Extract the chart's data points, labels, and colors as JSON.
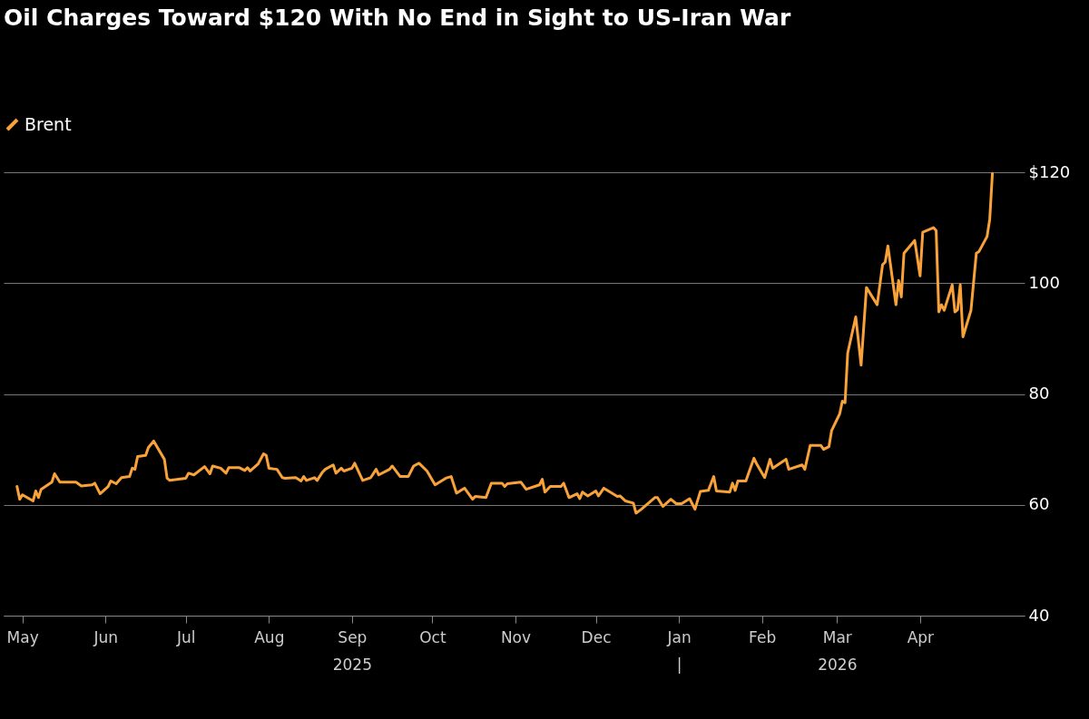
{
  "chart_data": {
    "type": "line",
    "title": "Oil Charges Toward $120 With No End in Sight to US-Iran War",
    "series": [
      {
        "name": "Brent",
        "color": "#f9a23a",
        "x": [
          "2025-04-29",
          "2025-04-30",
          "2025-05-01",
          "2025-05-05",
          "2025-05-06",
          "2025-05-07",
          "2025-05-08",
          "2025-05-12",
          "2025-05-13",
          "2025-05-15",
          "2025-05-21",
          "2025-05-23",
          "2025-05-27",
          "2025-05-28",
          "2025-05-30",
          "2025-06-02",
          "2025-06-03",
          "2025-06-05",
          "2025-06-07",
          "2025-06-10",
          "2025-06-11",
          "2025-06-12",
          "2025-06-13",
          "2025-06-16",
          "2025-06-17",
          "2025-06-19",
          "2025-06-23",
          "2025-06-24",
          "2025-06-25",
          "2025-07-01",
          "2025-07-02",
          "2025-07-04",
          "2025-07-08",
          "2025-07-10",
          "2025-07-11",
          "2025-07-14",
          "2025-07-16",
          "2025-07-17",
          "2025-07-21",
          "2025-07-23",
          "2025-07-24",
          "2025-07-25",
          "2025-07-28",
          "2025-07-30",
          "2025-07-31",
          "2025-08-01",
          "2025-08-04",
          "2025-08-06",
          "2025-08-07",
          "2025-08-11",
          "2025-08-13",
          "2025-08-14",
          "2025-08-15",
          "2025-08-18",
          "2025-08-19",
          "2025-08-21",
          "2025-08-22",
          "2025-08-25",
          "2025-08-26",
          "2025-08-28",
          "2025-08-29",
          "2025-09-01",
          "2025-09-02",
          "2025-09-05",
          "2025-09-08",
          "2025-09-10",
          "2025-09-11",
          "2025-09-15",
          "2025-09-16",
          "2025-09-19",
          "2025-09-22",
          "2025-09-24",
          "2025-09-26",
          "2025-09-29",
          "2025-10-02",
          "2025-10-06",
          "2025-10-08",
          "2025-10-10",
          "2025-10-13",
          "2025-10-16",
          "2025-10-17",
          "2025-10-21",
          "2025-10-23",
          "2025-10-27",
          "2025-10-28",
          "2025-10-29",
          "2025-11-03",
          "2025-11-05",
          "2025-11-10",
          "2025-11-11",
          "2025-11-12",
          "2025-11-14",
          "2025-11-18",
          "2025-11-19",
          "2025-11-21",
          "2025-11-24",
          "2025-11-25",
          "2025-11-26",
          "2025-11-28",
          "2025-12-01",
          "2025-12-02",
          "2025-12-04",
          "2025-12-09",
          "2025-12-10",
          "2025-12-12",
          "2025-12-15",
          "2025-12-16",
          "2025-12-18",
          "2025-12-23",
          "2025-12-24",
          "2025-12-26",
          "2025-12-29",
          "2025-12-31",
          "2026-01-02",
          "2026-01-05",
          "2026-01-07",
          "2026-01-09",
          "2026-01-12",
          "2026-01-14",
          "2026-01-15",
          "2026-01-20",
          "2026-01-21",
          "2026-01-22",
          "2026-01-23",
          "2026-01-26",
          "2026-01-27",
          "2026-01-29",
          "2026-01-30",
          "2026-02-02",
          "2026-02-04",
          "2026-02-05",
          "2026-02-09",
          "2026-02-10",
          "2026-02-11",
          "2026-02-16",
          "2026-02-17",
          "2026-02-19",
          "2026-02-23",
          "2026-02-24",
          "2026-02-26",
          "2026-02-27",
          "2026-03-02",
          "2026-03-03",
          "2026-03-04",
          "2026-03-05",
          "2026-03-08",
          "2026-03-10",
          "2026-03-12",
          "2026-03-16",
          "2026-03-18",
          "2026-03-19",
          "2026-03-20",
          "2026-03-23",
          "2026-03-24",
          "2026-03-25",
          "2026-03-26",
          "2026-03-30",
          "2026-04-01",
          "2026-04-02",
          "2026-04-06",
          "2026-04-07",
          "2026-04-08",
          "2026-04-09",
          "2026-04-10",
          "2026-04-13",
          "2026-04-14",
          "2026-04-15",
          "2026-04-16",
          "2026-04-17",
          "2026-04-20",
          "2026-04-22",
          "2026-04-23",
          "2026-04-26",
          "2026-04-27",
          "2026-04-28"
        ],
        "values": [
          63.3,
          61.0,
          61.8,
          60.7,
          62.5,
          61.3,
          62.8,
          64.1,
          65.6,
          64.1,
          64.1,
          63.4,
          63.6,
          63.9,
          62.0,
          63.3,
          64.3,
          63.8,
          64.9,
          65.1,
          66.6,
          66.4,
          68.7,
          68.9,
          70.3,
          71.5,
          68.2,
          64.8,
          64.4,
          64.8,
          65.7,
          65.4,
          66.9,
          65.6,
          67.0,
          66.6,
          65.7,
          66.7,
          66.7,
          66.2,
          66.7,
          66.1,
          67.4,
          69.2,
          68.9,
          66.6,
          66.4,
          64.9,
          64.8,
          64.9,
          64.3,
          65.1,
          64.4,
          64.9,
          64.4,
          65.9,
          66.4,
          67.2,
          65.7,
          66.6,
          66.1,
          66.6,
          67.5,
          64.4,
          64.9,
          66.4,
          65.4,
          66.4,
          67.0,
          65.1,
          65.1,
          67.0,
          67.5,
          66.1,
          63.6,
          64.8,
          65.1,
          62.1,
          63.0,
          61.0,
          61.5,
          61.3,
          63.9,
          63.9,
          63.3,
          63.8,
          64.1,
          62.8,
          63.6,
          64.6,
          62.3,
          63.3,
          63.3,
          63.9,
          61.3,
          62.0,
          61.1,
          62.3,
          61.6,
          62.5,
          61.6,
          63.0,
          61.5,
          61.6,
          60.7,
          60.3,
          58.5,
          59.2,
          61.3,
          61.3,
          59.7,
          61.0,
          60.2,
          60.2,
          61.1,
          59.2,
          62.4,
          62.6,
          65.1,
          62.5,
          62.3,
          63.9,
          62.6,
          64.3,
          64.3,
          65.7,
          68.4,
          67.4,
          64.9,
          68.2,
          66.6,
          67.9,
          68.2,
          66.4,
          67.2,
          66.4,
          70.7,
          70.7,
          70.0,
          70.5,
          73.4,
          76.4,
          78.7,
          78.4,
          87.4,
          93.9,
          85.2,
          99.2,
          96.1,
          103.3,
          103.8,
          106.7,
          96.1,
          100.5,
          97.5,
          105.4,
          107.7,
          101.3,
          109.2,
          110.0,
          109.5,
          94.8,
          96.1,
          95.1,
          99.7,
          94.8,
          95.2,
          99.7,
          90.3,
          95.1,
          105.4,
          105.7,
          108.4,
          111.5,
          119.8
        ]
      }
    ],
    "xlim": [
      "2025-04-24",
      "2026-05-10"
    ],
    "xticks": [
      {
        "value": "2025-05-01",
        "label": "May"
      },
      {
        "value": "2025-06-01",
        "label": "Jun"
      },
      {
        "value": "2025-07-01",
        "label": "Jul"
      },
      {
        "value": "2025-08-01",
        "label": "Aug"
      },
      {
        "value": "2025-09-01",
        "label": "Sep"
      },
      {
        "value": "2025-10-01",
        "label": "Oct"
      },
      {
        "value": "2025-11-01",
        "label": "Nov"
      },
      {
        "value": "2025-12-01",
        "label": "Dec"
      },
      {
        "value": "2026-01-01",
        "label": "Jan"
      },
      {
        "value": "2026-02-01",
        "label": "Feb"
      },
      {
        "value": "2026-03-01",
        "label": "Mar"
      },
      {
        "value": "2026-04-01",
        "label": "Apr"
      }
    ],
    "x2lim": [
      "2025-04-24",
      "2026-05-10"
    ],
    "x2ticks": [
      {
        "value": "2025-09-01",
        "label": "2025"
      },
      {
        "value": "2026-01-01",
        "label": "|"
      },
      {
        "value": "2026-03-01",
        "label": "2026"
      }
    ],
    "ylim": [
      40,
      120
    ],
    "yticks": [
      40,
      60,
      80,
      100,
      {
        "value": 120,
        "label": "$120"
      }
    ],
    "grid": "y",
    "legend": "top left",
    "line_style": "solid",
    "marker": "none"
  }
}
